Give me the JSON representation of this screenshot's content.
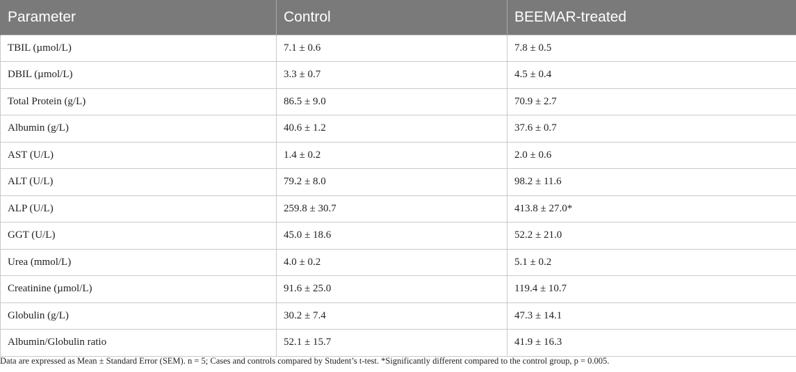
{
  "table": {
    "headers": [
      "Parameter",
      "Control",
      "BEEMAR-treated"
    ],
    "rows": [
      [
        "TBIL (µmol/L)",
        "7.1 ± 0.6",
        "7.8 ± 0.5"
      ],
      [
        "DBIL (µmol/L)",
        "3.3 ± 0.7",
        "4.5 ± 0.4"
      ],
      [
        "Total Protein (g/L)",
        "86.5 ± 9.0",
        "70.9 ± 2.7"
      ],
      [
        "Albumin (g/L)",
        "40.6 ± 1.2",
        "37.6 ± 0.7"
      ],
      [
        "AST (U/L)",
        "1.4 ± 0.2",
        "2.0 ± 0.6"
      ],
      [
        "ALT (U/L)",
        "79.2 ± 8.0",
        "98.2 ± 11.6"
      ],
      [
        "ALP (U/L)",
        "259.8 ± 30.7",
        "413.8 ± 27.0*"
      ],
      [
        "GGT (U/L)",
        "45.0 ± 18.6",
        "52.2 ± 21.0"
      ],
      [
        "Urea (mmol/L)",
        "4.0 ± 0.2",
        "5.1 ± 0.2"
      ],
      [
        "Creatinine (µmol/L)",
        "91.6 ± 25.0",
        "119.4 ± 10.7"
      ],
      [
        "Globulin (g/L)",
        "30.2 ± 7.4",
        "47.3 ± 14.1"
      ],
      [
        "Albumin/Globulin ratio",
        "52.1 ± 15.7",
        "41.9 ± 16.3"
      ]
    ]
  },
  "footnote": "Data are expressed as Mean ± Standard Error (SEM). n = 5; Cases and controls compared by Student’s t-test. *Significantly different compared to the control group, p = 0.005.",
  "colors": {
    "header_bg": "#7a7a7a",
    "header_text": "#ffffff",
    "grid": "#c9c9c9"
  }
}
